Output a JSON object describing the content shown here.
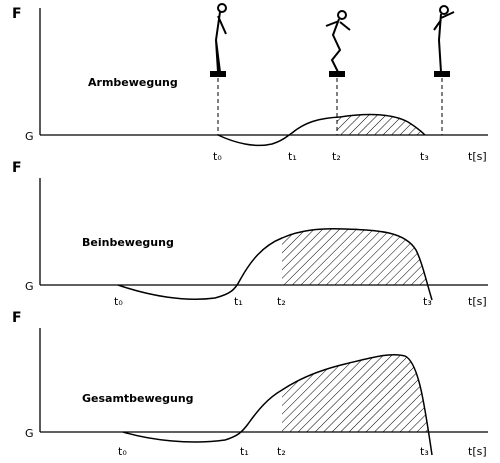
{
  "panels": [
    {
      "axis_label": "F",
      "baseline_label": "G",
      "title": "Armbewegung",
      "time_labels": [
        "t₀",
        "t₁",
        "t₂",
        "t₃"
      ],
      "x_axis_label": "t[s]"
    },
    {
      "axis_label": "F",
      "baseline_label": "G",
      "title": "Beinbewegung",
      "time_labels": [
        "t₀",
        "t₁",
        "t₂",
        "t₃"
      ],
      "x_axis_label": "t[s]"
    },
    {
      "axis_label": "F",
      "baseline_label": "G",
      "title": "Gesamtbewegung",
      "time_labels": [
        "t₀",
        "t₁",
        "t₂",
        "t₃"
      ],
      "x_axis_label": "t[s]"
    }
  ]
}
